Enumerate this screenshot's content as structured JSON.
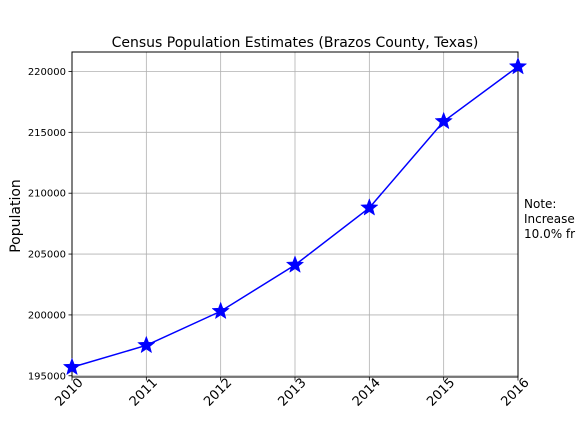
{
  "chart_data": {
    "type": "line",
    "title": "Census Population Estimates (Brazos County, Texas)",
    "xlabel": "",
    "ylabel": "Population",
    "x": [
      "2010",
      "2011",
      "2012",
      "2013",
      "2014",
      "2015",
      "2016"
    ],
    "series": [
      {
        "values": [
          195700,
          197500,
          200300,
          204100,
          208800,
          215900,
          220400
        ],
        "color": "#0000ff",
        "marker": "star"
      }
    ],
    "xlim": [
      2010,
      2016
    ],
    "ylim": [
      194900,
      221600
    ],
    "yticks": [
      195000,
      200000,
      205000,
      210000,
      215000,
      220000
    ],
    "grid": true,
    "annotation": [
      "Note:",
      "Increase",
      "10.0% fr"
    ]
  }
}
